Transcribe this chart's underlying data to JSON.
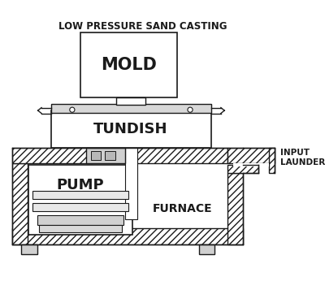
{
  "title": "LOW PRESSURE SAND CASTING",
  "title_fontsize": 8.5,
  "title_fontweight": "bold",
  "label_mold": "MOLD",
  "label_tundish": "TUNDISH",
  "label_pump": "PUMP",
  "label_furnace": "FURNACE",
  "label_input_launder": "INPUT\nLAUNDER",
  "bg_color": "#ffffff",
  "line_color": "#1a1a1a",
  "figsize": [
    4.0,
    3.46
  ],
  "dpi": 100
}
